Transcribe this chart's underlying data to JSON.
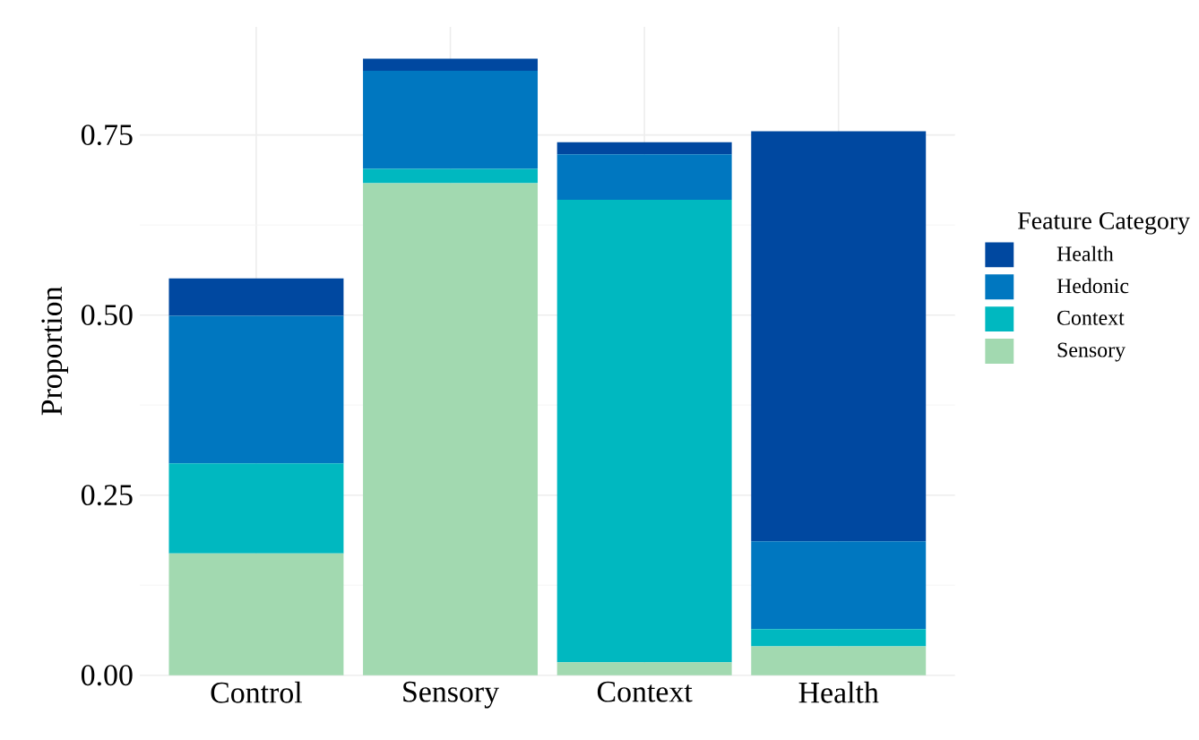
{
  "chart_data": {
    "type": "bar",
    "stacked": true,
    "ylabel": "Proportion",
    "legend_title": "Feature Category",
    "legend": "right",
    "grid": true,
    "categories": [
      "Control",
      "Sensory",
      "Context",
      "Health"
    ],
    "series": [
      {
        "name": "Sensory",
        "color": "#a2d9b0",
        "values": [
          0.169,
          0.683,
          0.018,
          0.04
        ]
      },
      {
        "name": "Context",
        "color": "#00b8c0",
        "values": [
          0.125,
          0.02,
          0.642,
          0.024
        ]
      },
      {
        "name": "Hedonic",
        "color": "#0077c0",
        "values": [
          0.205,
          0.136,
          0.063,
          0.122
        ]
      },
      {
        "name": "Health",
        "color": "#0048a0",
        "values": [
          0.052,
          0.017,
          0.017,
          0.569
        ]
      }
    ],
    "ylim": [
      0,
      0.9
    ],
    "yticks": [
      {
        "value": 0,
        "label": "0.00"
      },
      {
        "value": 0.25,
        "label": "0.25"
      },
      {
        "value": 0.5,
        "label": "0.50"
      },
      {
        "value": 0.75,
        "label": "0.75"
      }
    ]
  }
}
